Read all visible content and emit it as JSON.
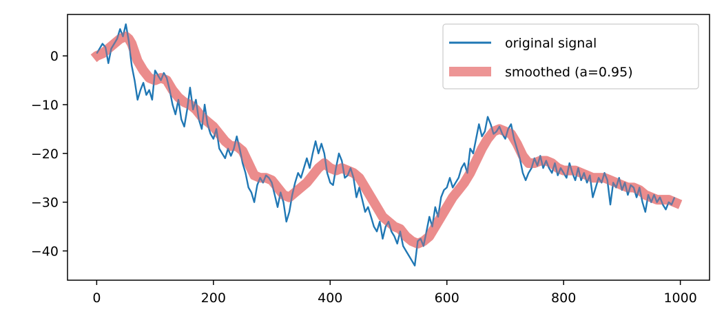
{
  "chart_data": {
    "type": "line",
    "title": "",
    "xlabel": "",
    "ylabel": "",
    "xlim": [
      -50,
      1050
    ],
    "ylim": [
      -46,
      8.5
    ],
    "xticks": [
      0,
      200,
      400,
      600,
      800,
      1000
    ],
    "xtick_labels": [
      "0",
      "200",
      "400",
      "600",
      "800",
      "1000"
    ],
    "yticks": [
      0,
      -10,
      -20,
      -30,
      -40
    ],
    "ytick_labels": [
      "0",
      "−10",
      "−20",
      "−30",
      "−40"
    ],
    "grid": false,
    "legend_position": "top-right",
    "series": [
      {
        "name": "original signal",
        "color": "#1f77b4",
        "style": "thin-line",
        "points": [
          [
            0,
            0.5
          ],
          [
            5,
            1.5
          ],
          [
            10,
            2.5
          ],
          [
            15,
            1.8
          ],
          [
            20,
            -1.5
          ],
          [
            25,
            1.5
          ],
          [
            30,
            2.5
          ],
          [
            35,
            3.5
          ],
          [
            40,
            5.5
          ],
          [
            45,
            4
          ],
          [
            50,
            6.5
          ],
          [
            55,
            3
          ],
          [
            60,
            -2
          ],
          [
            65,
            -5
          ],
          [
            70,
            -9
          ],
          [
            75,
            -7
          ],
          [
            80,
            -5.5
          ],
          [
            85,
            -8
          ],
          [
            90,
            -7
          ],
          [
            95,
            -9
          ],
          [
            100,
            -3
          ],
          [
            105,
            -4
          ],
          [
            110,
            -5
          ],
          [
            115,
            -3.5
          ],
          [
            120,
            -4.5
          ],
          [
            125,
            -7
          ],
          [
            130,
            -10
          ],
          [
            135,
            -12
          ],
          [
            140,
            -9
          ],
          [
            145,
            -13
          ],
          [
            150,
            -14.5
          ],
          [
            155,
            -11
          ],
          [
            160,
            -6.5
          ],
          [
            165,
            -11
          ],
          [
            170,
            -9
          ],
          [
            175,
            -13
          ],
          [
            180,
            -15
          ],
          [
            185,
            -10
          ],
          [
            190,
            -14
          ],
          [
            195,
            -16
          ],
          [
            200,
            -17
          ],
          [
            205,
            -15
          ],
          [
            210,
            -19
          ],
          [
            215,
            -20
          ],
          [
            220,
            -21
          ],
          [
            225,
            -19
          ],
          [
            230,
            -20.5
          ],
          [
            235,
            -19
          ],
          [
            240,
            -16.5
          ],
          [
            245,
            -19
          ],
          [
            250,
            -22
          ],
          [
            255,
            -24
          ],
          [
            260,
            -27
          ],
          [
            265,
            -28
          ],
          [
            270,
            -30
          ],
          [
            275,
            -26.5
          ],
          [
            280,
            -25
          ],
          [
            285,
            -26
          ],
          [
            290,
            -24.5
          ],
          [
            295,
            -25
          ],
          [
            300,
            -26
          ],
          [
            305,
            -28.5
          ],
          [
            310,
            -31
          ],
          [
            315,
            -28
          ],
          [
            320,
            -30
          ],
          [
            325,
            -34
          ],
          [
            330,
            -32
          ],
          [
            335,
            -28.5
          ],
          [
            340,
            -26
          ],
          [
            345,
            -24
          ],
          [
            350,
            -25
          ],
          [
            355,
            -23
          ],
          [
            360,
            -21
          ],
          [
            365,
            -23
          ],
          [
            370,
            -20
          ],
          [
            375,
            -17.5
          ],
          [
            380,
            -20
          ],
          [
            385,
            -18
          ],
          [
            390,
            -20
          ],
          [
            395,
            -24
          ],
          [
            400,
            -26
          ],
          [
            405,
            -26.5
          ],
          [
            410,
            -23
          ],
          [
            415,
            -20
          ],
          [
            420,
            -21.5
          ],
          [
            425,
            -25
          ],
          [
            430,
            -24.5
          ],
          [
            435,
            -23
          ],
          [
            440,
            -25
          ],
          [
            445,
            -29
          ],
          [
            450,
            -27
          ],
          [
            455,
            -29.5
          ],
          [
            460,
            -32
          ],
          [
            465,
            -31
          ],
          [
            470,
            -33
          ],
          [
            475,
            -35
          ],
          [
            480,
            -36
          ],
          [
            485,
            -34
          ],
          [
            490,
            -37.5
          ],
          [
            495,
            -35
          ],
          [
            500,
            -34
          ],
          [
            505,
            -36
          ],
          [
            510,
            -37
          ],
          [
            515,
            -38.5
          ],
          [
            520,
            -36
          ],
          [
            525,
            -39
          ],
          [
            530,
            -40
          ],
          [
            535,
            -41
          ],
          [
            540,
            -42
          ],
          [
            545,
            -43
          ],
          [
            550,
            -38
          ],
          [
            555,
            -37.5
          ],
          [
            560,
            -39
          ],
          [
            565,
            -36
          ],
          [
            570,
            -33
          ],
          [
            575,
            -35
          ],
          [
            580,
            -31
          ],
          [
            585,
            -33
          ],
          [
            590,
            -29
          ],
          [
            595,
            -27.5
          ],
          [
            600,
            -27
          ],
          [
            605,
            -25
          ],
          [
            610,
            -27
          ],
          [
            615,
            -26
          ],
          [
            620,
            -25
          ],
          [
            625,
            -23
          ],
          [
            630,
            -22
          ],
          [
            635,
            -24
          ],
          [
            640,
            -19
          ],
          [
            645,
            -20
          ],
          [
            650,
            -17
          ],
          [
            655,
            -14
          ],
          [
            660,
            -16.5
          ],
          [
            665,
            -15.5
          ],
          [
            670,
            -12.5
          ],
          [
            675,
            -14
          ],
          [
            680,
            -16
          ],
          [
            685,
            -15.5
          ],
          [
            690,
            -14.5
          ],
          [
            695,
            -16
          ],
          [
            700,
            -17
          ],
          [
            705,
            -15
          ],
          [
            710,
            -14
          ],
          [
            715,
            -17
          ],
          [
            720,
            -19
          ],
          [
            725,
            -21
          ],
          [
            730,
            -24
          ],
          [
            735,
            -25.5
          ],
          [
            740,
            -24
          ],
          [
            745,
            -23
          ],
          [
            750,
            -21
          ],
          [
            755,
            -22.5
          ],
          [
            760,
            -20.5
          ],
          [
            765,
            -23
          ],
          [
            770,
            -21.5
          ],
          [
            775,
            -23
          ],
          [
            780,
            -24
          ],
          [
            785,
            -22
          ],
          [
            790,
            -24.5
          ],
          [
            795,
            -23
          ],
          [
            800,
            -24
          ],
          [
            805,
            -25
          ],
          [
            810,
            -22
          ],
          [
            815,
            -24
          ],
          [
            820,
            -25.5
          ],
          [
            825,
            -23
          ],
          [
            830,
            -25.5
          ],
          [
            835,
            -24
          ],
          [
            840,
            -26
          ],
          [
            845,
            -24.5
          ],
          [
            850,
            -29
          ],
          [
            855,
            -27
          ],
          [
            860,
            -25
          ],
          [
            865,
            -26
          ],
          [
            870,
            -24
          ],
          [
            875,
            -25.5
          ],
          [
            880,
            -30.5
          ],
          [
            885,
            -26
          ],
          [
            890,
            -27
          ],
          [
            895,
            -25
          ],
          [
            900,
            -27.5
          ],
          [
            905,
            -26
          ],
          [
            910,
            -28.5
          ],
          [
            915,
            -26.5
          ],
          [
            920,
            -27
          ],
          [
            925,
            -29
          ],
          [
            930,
            -27
          ],
          [
            935,
            -30
          ],
          [
            940,
            -32
          ],
          [
            945,
            -28.5
          ],
          [
            950,
            -30
          ],
          [
            955,
            -28.5
          ],
          [
            960,
            -30
          ],
          [
            965,
            -29
          ],
          [
            970,
            -30.5
          ],
          [
            975,
            -31.5
          ],
          [
            980,
            -30
          ],
          [
            985,
            -30.5
          ],
          [
            990,
            -29
          ]
        ]
      },
      {
        "name": "smoothed (a=0.95)",
        "color": "#e87a7a",
        "style": "thick-translucent-line",
        "points": [
          [
            -5,
            -0.5
          ],
          [
            0,
            0
          ],
          [
            10,
            0.5
          ],
          [
            20,
            1.5
          ],
          [
            30,
            2.5
          ],
          [
            40,
            3.5
          ],
          [
            50,
            4
          ],
          [
            55,
            3.5
          ],
          [
            60,
            2.5
          ],
          [
            70,
            -1
          ],
          [
            80,
            -3
          ],
          [
            90,
            -4.5
          ],
          [
            100,
            -5
          ],
          [
            110,
            -4.5
          ],
          [
            120,
            -5
          ],
          [
            130,
            -7
          ],
          [
            140,
            -8.5
          ],
          [
            150,
            -9.5
          ],
          [
            160,
            -10
          ],
          [
            170,
            -11
          ],
          [
            180,
            -12.5
          ],
          [
            190,
            -13.5
          ],
          [
            200,
            -14.5
          ],
          [
            210,
            -16
          ],
          [
            220,
            -17.5
          ],
          [
            230,
            -18.5
          ],
          [
            240,
            -18.5
          ],
          [
            250,
            -19.5
          ],
          [
            260,
            -22
          ],
          [
            270,
            -24.5
          ],
          [
            280,
            -25
          ],
          [
            290,
            -25
          ],
          [
            300,
            -25.5
          ],
          [
            310,
            -27
          ],
          [
            320,
            -28.5
          ],
          [
            330,
            -29
          ],
          [
            340,
            -28
          ],
          [
            350,
            -27
          ],
          [
            360,
            -26
          ],
          [
            370,
            -24.5
          ],
          [
            380,
            -23
          ],
          [
            390,
            -22
          ],
          [
            400,
            -23
          ],
          [
            410,
            -23.5
          ],
          [
            420,
            -23
          ],
          [
            430,
            -23.5
          ],
          [
            440,
            -24
          ],
          [
            450,
            -25
          ],
          [
            460,
            -27
          ],
          [
            470,
            -29
          ],
          [
            480,
            -31
          ],
          [
            490,
            -33
          ],
          [
            500,
            -34
          ],
          [
            510,
            -35
          ],
          [
            520,
            -35.5
          ],
          [
            530,
            -37
          ],
          [
            540,
            -38
          ],
          [
            550,
            -38.5
          ],
          [
            560,
            -38
          ],
          [
            570,
            -37
          ],
          [
            580,
            -35
          ],
          [
            590,
            -33
          ],
          [
            600,
            -31
          ],
          [
            610,
            -29
          ],
          [
            620,
            -27.5
          ],
          [
            630,
            -26
          ],
          [
            640,
            -24
          ],
          [
            650,
            -21.5
          ],
          [
            660,
            -19
          ],
          [
            670,
            -17
          ],
          [
            680,
            -15.5
          ],
          [
            690,
            -15
          ],
          [
            700,
            -15.5
          ],
          [
            710,
            -16
          ],
          [
            720,
            -18
          ],
          [
            730,
            -20.5
          ],
          [
            740,
            -22
          ],
          [
            750,
            -22
          ],
          [
            760,
            -21.5
          ],
          [
            770,
            -21.5
          ],
          [
            780,
            -22
          ],
          [
            790,
            -23
          ],
          [
            800,
            -23.5
          ],
          [
            810,
            -23.5
          ],
          [
            820,
            -23.5
          ],
          [
            830,
            -24
          ],
          [
            840,
            -24.5
          ],
          [
            850,
            -25
          ],
          [
            860,
            -25
          ],
          [
            870,
            -25
          ],
          [
            880,
            -25.5
          ],
          [
            890,
            -26
          ],
          [
            900,
            -26.5
          ],
          [
            910,
            -27
          ],
          [
            920,
            -27
          ],
          [
            930,
            -27.5
          ],
          [
            940,
            -28.5
          ],
          [
            950,
            -29
          ],
          [
            960,
            -29.5
          ],
          [
            970,
            -29.5
          ],
          [
            980,
            -29.5
          ],
          [
            990,
            -30
          ],
          [
            1000,
            -30.5
          ]
        ]
      }
    ]
  }
}
